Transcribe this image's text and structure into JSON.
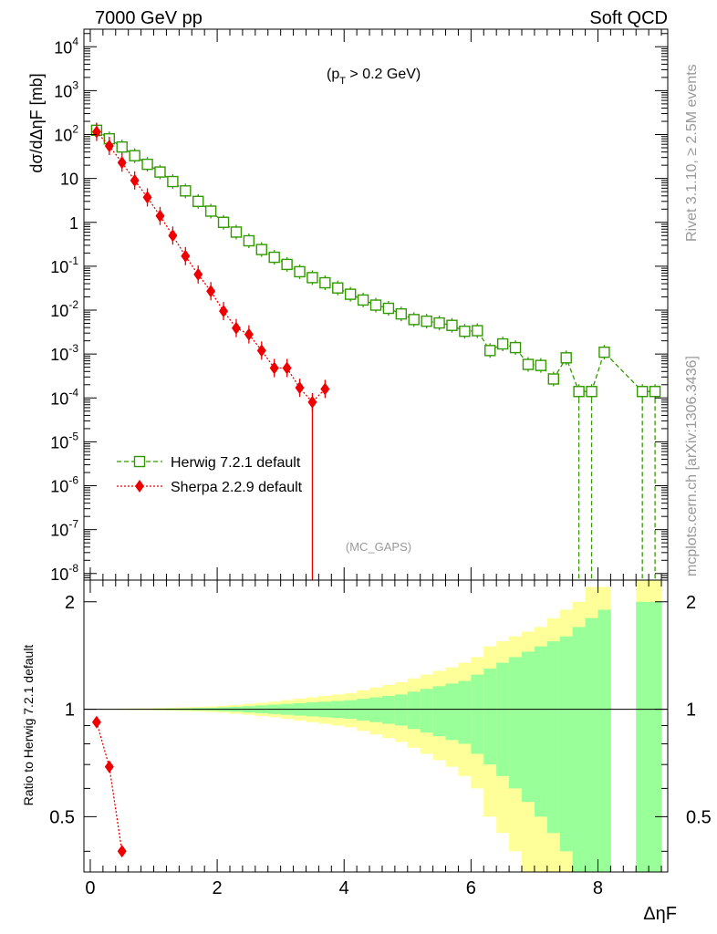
{
  "header": {
    "left": "7000 GeV pp",
    "right": "Soft QCD"
  },
  "side_labels": {
    "rivet": "Rivet 3.1.10, ≥ 2.5M events",
    "mcplots": "mcplots.cern.ch [arXiv:1306.3436]"
  },
  "cut_label": {
    "base": "(p",
    "sub": "T",
    "rest": " > 0.2 GeV)"
  },
  "watermark": "(MC_GAPS)",
  "colors": {
    "herwig": "#339900",
    "sherpa": "#ee0000",
    "band_inner": "#99ff99",
    "band_outer": "#ffff99"
  },
  "chart_data": [
    {
      "type": "scatter",
      "panel": "main",
      "ylabel": "dσ/dΔηF [mb]",
      "xlim": [
        -0.1,
        9.1
      ],
      "ylim_log10": [
        -8.15,
        4.4
      ],
      "y_scale": "log",
      "yticks": [
        "10^4",
        "10^3",
        "10^2",
        "10",
        "1",
        "10^-1",
        "10^-2",
        "10^-3",
        "10^-4",
        "10^-5",
        "10^-6",
        "10^-7",
        "10^-8"
      ],
      "legend_position": "lower-left",
      "series": [
        {
          "name": "Herwig 7.2.1 default",
          "marker": "open-square",
          "line": "dashed",
          "x": [
            0.1,
            0.3,
            0.5,
            0.7,
            0.9,
            1.1,
            1.3,
            1.5,
            1.7,
            1.9,
            2.1,
            2.3,
            2.5,
            2.7,
            2.9,
            3.1,
            3.3,
            3.5,
            3.7,
            3.9,
            4.1,
            4.3,
            4.5,
            4.7,
            4.9,
            5.1,
            5.3,
            5.5,
            5.7,
            5.9,
            6.1,
            6.3,
            6.5,
            6.7,
            6.9,
            7.1,
            7.3,
            7.5,
            7.7,
            7.9,
            8.1,
            8.7,
            8.9
          ],
          "y": [
            125,
            80,
            52,
            33,
            21,
            14,
            8.5,
            5.2,
            3.0,
            1.8,
            1.0,
            0.6,
            0.38,
            0.24,
            0.16,
            0.11,
            0.075,
            0.055,
            0.042,
            0.032,
            0.023,
            0.017,
            0.013,
            0.011,
            0.0082,
            0.0061,
            0.0056,
            0.0051,
            0.0045,
            0.0033,
            0.0034,
            0.0012,
            0.0017,
            0.0014,
            0.00058,
            0.00055,
            0.00027,
            0.00082,
            0.00014,
            0.00014,
            0.0011,
            0.00014,
            0.00014
          ]
        },
        {
          "name": "Sherpa 2.2.9 default",
          "marker": "filled-diamond",
          "line": "dotted",
          "x": [
            0.1,
            0.3,
            0.5,
            0.7,
            0.9,
            1.1,
            1.3,
            1.5,
            1.7,
            1.9,
            2.1,
            2.3,
            2.5,
            2.7,
            2.9,
            3.1,
            3.3,
            3.5,
            3.7
          ],
          "y": [
            115,
            55,
            23,
            9,
            3.7,
            1.4,
            0.5,
            0.17,
            0.065,
            0.027,
            0.0095,
            0.0039,
            0.0028,
            0.0012,
            0.00048,
            0.00048,
            0.00017,
            8e-05,
            0.00016
          ]
        }
      ]
    },
    {
      "type": "area",
      "panel": "ratio",
      "ylabel": "Ratio to Herwig 7.2.1 default",
      "xlabel": "ΔηF",
      "xlim": [
        -0.1,
        9.1
      ],
      "ylim": [
        0.35,
        2.3
      ],
      "yticks": [
        "0.5",
        "1",
        "2"
      ],
      "xticks": [
        "0",
        "2",
        "4",
        "6",
        "8"
      ],
      "bands": {
        "bin_edges": [
          0,
          0.2,
          0.4,
          0.6,
          0.8,
          1.0,
          1.2,
          1.4,
          1.6,
          1.8,
          2.0,
          2.2,
          2.4,
          2.6,
          2.8,
          3.0,
          3.2,
          3.4,
          3.6,
          3.8,
          4.0,
          4.2,
          4.4,
          4.6,
          4.8,
          5.0,
          5.2,
          5.4,
          5.6,
          5.8,
          6.0,
          6.2,
          6.4,
          6.6,
          6.8,
          7.0,
          7.2,
          7.4,
          7.6,
          7.8,
          8.0,
          8.2,
          8.4,
          8.6,
          8.8,
          9.0
        ],
        "inner_half_width": [
          0.001,
          0.002,
          0.002,
          0.003,
          0.003,
          0.004,
          0.005,
          0.006,
          0.008,
          0.009,
          0.012,
          0.016,
          0.02,
          0.025,
          0.03,
          0.035,
          0.04,
          0.045,
          0.05,
          0.055,
          0.06,
          0.07,
          0.08,
          0.09,
          0.1,
          0.12,
          0.14,
          0.16,
          0.18,
          0.2,
          0.25,
          0.3,
          0.35,
          0.4,
          0.45,
          0.5,
          0.55,
          0.6,
          0.7,
          0.8,
          0.9,
          null,
          null,
          1.0,
          1.0
        ],
        "outer_half_width": [
          0.002,
          0.003,
          0.004,
          0.005,
          0.006,
          0.008,
          0.01,
          0.012,
          0.015,
          0.018,
          0.022,
          0.028,
          0.035,
          0.042,
          0.05,
          0.06,
          0.07,
          0.08,
          0.09,
          0.1,
          0.11,
          0.13,
          0.15,
          0.17,
          0.19,
          0.22,
          0.25,
          0.28,
          0.31,
          0.35,
          0.4,
          0.5,
          0.55,
          0.6,
          0.65,
          0.7,
          0.8,
          0.9,
          1.0,
          1.2,
          1.2,
          null,
          null,
          1.3,
          1.3
        ]
      },
      "series": [
        {
          "name": "Sherpa 2.2.9 default",
          "x": [
            0.1,
            0.3,
            0.5
          ],
          "y": [
            0.92,
            0.69,
            0.4
          ]
        }
      ]
    }
  ]
}
